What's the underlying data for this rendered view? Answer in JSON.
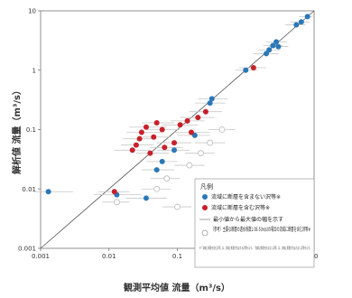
{
  "chart_data": {
    "type": "scatter",
    "xlabel": "観測平均値 流量（m³/s）",
    "ylabel": "解析値 流量（m³/s）",
    "x_scale": "log",
    "y_scale": "log",
    "xlim": [
      0.001,
      10
    ],
    "ylim": [
      0.001,
      10
    ],
    "x_ticks": [
      "0.001",
      "0.01",
      "0.1",
      "1",
      "10"
    ],
    "y_ticks": [
      "0.001",
      "0.01",
      "0.1",
      "1",
      "10"
    ],
    "reference_line": "y = x",
    "grid": false,
    "legend_position": "bottom-right",
    "legend": {
      "title": "凡例",
      "items": [
        "流域に断層を含まない沢等※",
        "流域に断層を含む沢等※",
        "最小値から最大値の幅を示す",
        "（参考）主要な断層の透水係数1.0E-5(m/s)の場合の流域に断層を含む沢等※"
      ],
      "note": "※「流域に断層を含む沢等」は、流域に断層が含まれる沢等を示す。「流域に断層を含まない沢等」は、流域に断層が含まれない沢等を示す。"
    },
    "colors": {
      "blue": "#2a78b8",
      "red": "#c8202a",
      "open": "#bbbbbb",
      "errorbar": "#c8c8c8"
    },
    "series": [
      {
        "name": "流域に断層を含まない沢等※",
        "marker": "filled-circle",
        "color": "#2a78b8",
        "points": [
          {
            "x": 0.0013,
            "y": 0.009,
            "xmin": 0.0008,
            "xmax": 0.003
          },
          {
            "x": 0.013,
            "y": 0.008,
            "xmin": 0.006,
            "xmax": 0.03
          },
          {
            "x": 0.035,
            "y": 0.007,
            "xmin": 0.018,
            "xmax": 0.07
          },
          {
            "x": 0.05,
            "y": 0.021,
            "xmin": 0.03,
            "xmax": 0.09
          },
          {
            "x": 0.06,
            "y": 0.029,
            "xmin": 0.035,
            "xmax": 0.1
          },
          {
            "x": 0.09,
            "y": 0.045,
            "xmin": 0.05,
            "xmax": 0.15
          },
          {
            "x": 0.18,
            "y": 0.08,
            "xmin": 0.1,
            "xmax": 0.3
          },
          {
            "x": 0.3,
            "y": 0.28,
            "xmin": 0.18,
            "xmax": 0.5
          },
          {
            "x": 0.32,
            "y": 0.33,
            "xmin": 0.2,
            "xmax": 0.55
          },
          {
            "x": 1.0,
            "y": 1.0,
            "xmin": 0.7,
            "xmax": 1.5
          },
          {
            "x": 2.0,
            "y": 1.9,
            "xmin": 1.3,
            "xmax": 3.0
          },
          {
            "x": 2.2,
            "y": 2.2,
            "xmin": 1.5,
            "xmax": 3.2
          },
          {
            "x": 2.5,
            "y": 2.6,
            "xmin": 1.8,
            "xmax": 3.5
          },
          {
            "x": 2.8,
            "y": 3.0,
            "xmin": 2.0,
            "xmax": 4.0
          },
          {
            "x": 3.0,
            "y": 2.5,
            "xmin": 2.2,
            "xmax": 4.2
          },
          {
            "x": 5.5,
            "y": 5.8,
            "xmin": 3.8,
            "xmax": 7.5
          },
          {
            "x": 6.5,
            "y": 6.5,
            "xmin": 4.5,
            "xmax": 8.5
          },
          {
            "x": 8.0,
            "y": 8.0,
            "xmin": 6.0,
            "xmax": 9.5
          }
        ]
      },
      {
        "name": "流域に断層を含む沢等※",
        "marker": "filled-circle",
        "color": "#c8202a",
        "points": [
          {
            "x": 0.012,
            "y": 0.009,
            "xmin": 0.007,
            "xmax": 0.02
          },
          {
            "x": 0.022,
            "y": 0.045,
            "xmin": 0.012,
            "xmax": 0.04
          },
          {
            "x": 0.025,
            "y": 0.055,
            "xmin": 0.015,
            "xmax": 0.045
          },
          {
            "x": 0.028,
            "y": 0.07,
            "xmin": 0.016,
            "xmax": 0.05
          },
          {
            "x": 0.03,
            "y": 0.09,
            "xmin": 0.018,
            "xmax": 0.06
          },
          {
            "x": 0.035,
            "y": 0.11,
            "xmin": 0.02,
            "xmax": 0.07
          },
          {
            "x": 0.04,
            "y": 0.04,
            "xmin": 0.025,
            "xmax": 0.075
          },
          {
            "x": 0.045,
            "y": 0.075,
            "xmin": 0.028,
            "xmax": 0.08
          },
          {
            "x": 0.05,
            "y": 0.13,
            "xmin": 0.03,
            "xmax": 0.09
          },
          {
            "x": 0.06,
            "y": 0.1,
            "xmin": 0.035,
            "xmax": 0.11
          },
          {
            "x": 0.065,
            "y": 0.05,
            "xmin": 0.04,
            "xmax": 0.12
          },
          {
            "x": 0.09,
            "y": 0.06,
            "xmin": 0.05,
            "xmax": 0.16
          },
          {
            "x": 0.11,
            "y": 0.12,
            "xmin": 0.06,
            "xmax": 0.2
          },
          {
            "x": 0.14,
            "y": 0.14,
            "xmin": 0.08,
            "xmax": 0.25
          },
          {
            "x": 0.16,
            "y": 0.09,
            "xmin": 0.09,
            "xmax": 0.3
          },
          {
            "x": 0.2,
            "y": 0.16,
            "xmin": 0.11,
            "xmax": 0.35
          },
          {
            "x": 0.26,
            "y": 0.2,
            "xmin": 0.15,
            "xmax": 0.45
          },
          {
            "x": 1.3,
            "y": 1.1,
            "xmin": 0.8,
            "xmax": 2.0
          }
        ]
      },
      {
        "name": "（参考）主要な断層の透水係数1.0E-5(m/s)の場合の流域に断層を含む沢等※",
        "marker": "open-circle",
        "color": "#bbbbbb",
        "points": [
          {
            "x": 0.013,
            "y": 0.006,
            "xmin": 0.008,
            "xmax": 0.02
          },
          {
            "x": 0.05,
            "y": 0.01,
            "xmin": 0.03,
            "xmax": 0.08
          },
          {
            "x": 0.07,
            "y": 0.015,
            "xmin": 0.04,
            "xmax": 0.11
          },
          {
            "x": 0.1,
            "y": 0.005,
            "xmin": 0.06,
            "xmax": 0.16
          },
          {
            "x": 0.15,
            "y": 0.025,
            "xmin": 0.09,
            "xmax": 0.25
          },
          {
            "x": 0.22,
            "y": 0.04,
            "xmin": 0.13,
            "xmax": 0.35
          },
          {
            "x": 0.3,
            "y": 0.06,
            "xmin": 0.18,
            "xmax": 0.5
          },
          {
            "x": 0.45,
            "y": 0.1,
            "xmin": 0.28,
            "xmax": 0.7
          }
        ]
      }
    ]
  }
}
